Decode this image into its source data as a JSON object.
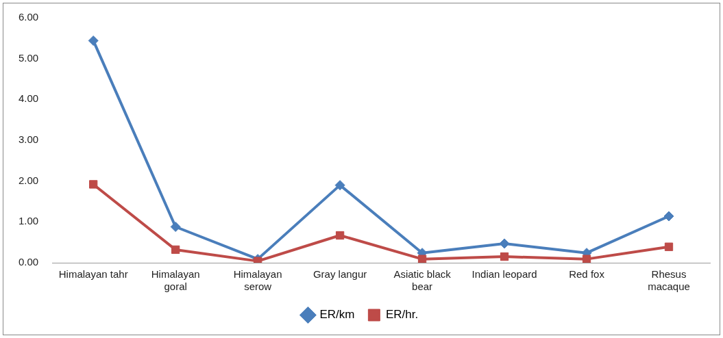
{
  "chart_data": {
    "type": "line",
    "categories": [
      "Himalayan tahr",
      "Himalayan goral",
      "Himalayan serow",
      "Gray langur",
      "Asiatic black bear",
      "Indian leopard",
      "Red fox",
      "Rhesus macaque"
    ],
    "series": [
      {
        "name": "ER/km",
        "color": "#4a7ebb",
        "marker": "diamond",
        "values": [
          5.44,
          0.88,
          0.09,
          1.9,
          0.24,
          0.47,
          0.24,
          1.14
        ]
      },
      {
        "name": "ER/hr.",
        "color": "#be4b48",
        "marker": "square",
        "values": [
          1.92,
          0.32,
          0.04,
          0.67,
          0.09,
          0.15,
          0.09,
          0.39
        ]
      }
    ],
    "ylim": [
      0,
      6
    ],
    "yticks": [
      {
        "value": 0,
        "label": "0.00"
      },
      {
        "value": 1,
        "label": "1.00"
      },
      {
        "value": 2,
        "label": "2.00"
      },
      {
        "value": 3,
        "label": "3.00"
      },
      {
        "value": 4,
        "label": "4.00"
      },
      {
        "value": 5,
        "label": "5.00"
      },
      {
        "value": 6,
        "label": "6.00"
      }
    ],
    "grid": false,
    "legend": "bottom",
    "line_style": "solid"
  }
}
